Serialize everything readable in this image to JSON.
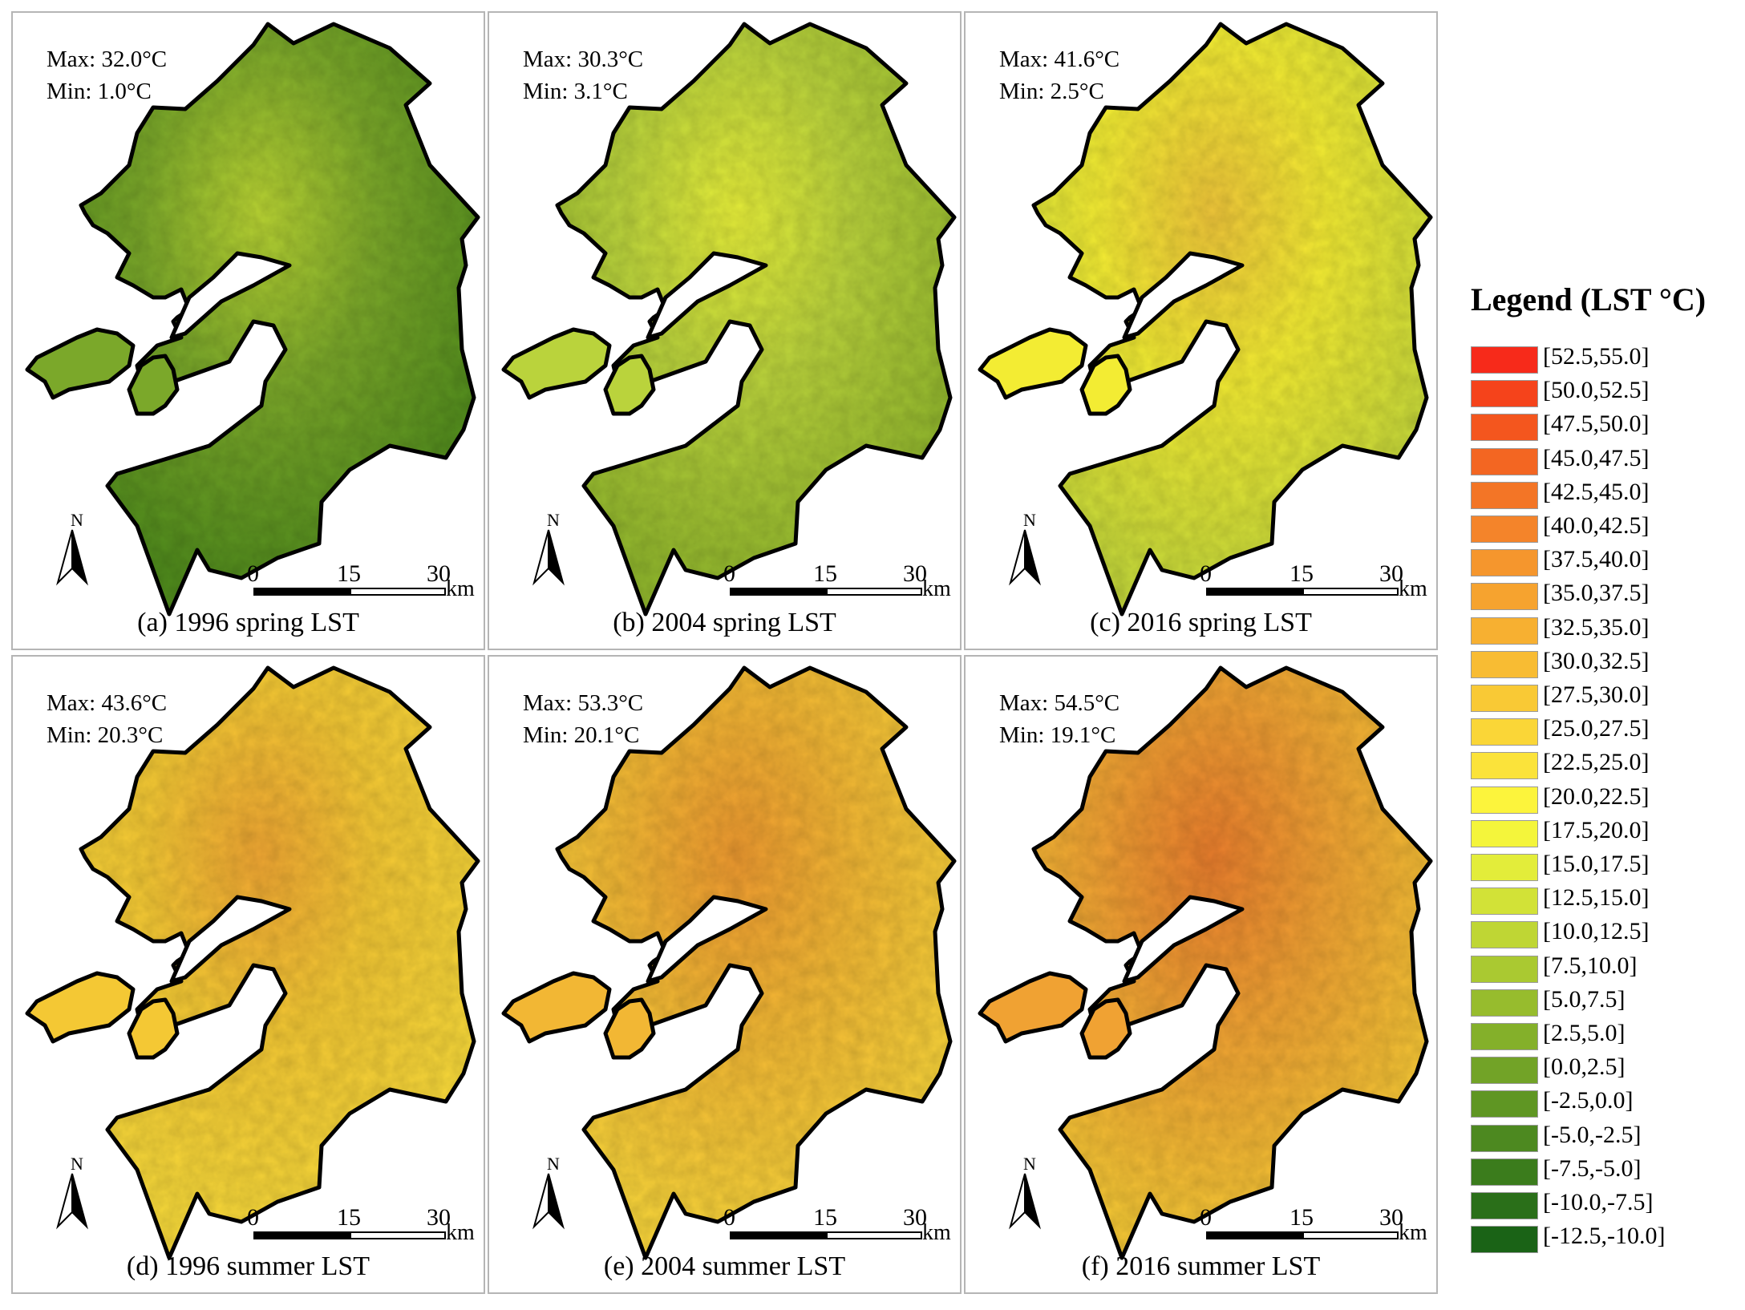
{
  "panels": [
    {
      "id": "a",
      "max": "Max: 32.0°C",
      "min": "Min: 1.0°C",
      "caption": "(a) 1996 spring LST",
      "base": "#7ba82a",
      "accent": "#b9d433",
      "dark": "#4f8a1c"
    },
    {
      "id": "b",
      "max": "Max: 30.3°C",
      "min": "Min: 3.1°C",
      "caption": "(b) 2004 spring LST",
      "base": "#bad33c",
      "accent": "#e7ef3a",
      "dark": "#8fb52c"
    },
    {
      "id": "c",
      "max": "Max: 41.6°C",
      "min": "Min: 2.5°C",
      "caption": "(c) 2016 spring LST",
      "base": "#f3ec33",
      "accent": "#f0c73a",
      "dark": "#c5d83a"
    },
    {
      "id": "d",
      "max": "Max: 43.6°C",
      "min": "Min: 20.3°C",
      "caption": "(d) 1996 summer LST",
      "base": "#f4c834",
      "accent": "#f0a733",
      "dark": "#f7d93a"
    },
    {
      "id": "e",
      "max": "Max: 53.3°C",
      "min": "Min: 20.1°C",
      "caption": "(e) 2004 summer LST",
      "base": "#f2b734",
      "accent": "#ee9a30",
      "dark": "#f7d33a"
    },
    {
      "id": "f",
      "max": "Max: 54.5°C",
      "min": "Min: 19.1°C",
      "caption": "(f) 2016 summer LST",
      "base": "#f0a233",
      "accent": "#ea7e2d",
      "dark": "#f5c735"
    }
  ],
  "scalebar": {
    "tick0": "0",
    "tick1": "15",
    "tick2": "30",
    "unit": "km"
  },
  "north_label": "N",
  "legend": {
    "title": "Legend (LST °C)",
    "items": [
      {
        "label": "[52.5,55.0]",
        "color": "#f72a1a"
      },
      {
        "label": "[50.0,52.5]",
        "color": "#f5431b"
      },
      {
        "label": "[47.5,50.0]",
        "color": "#f4561e"
      },
      {
        "label": "[45.0,47.5]",
        "color": "#f36622"
      },
      {
        "label": "[42.5,45.0]",
        "color": "#f37526"
      },
      {
        "label": "[40.0,42.5]",
        "color": "#f4842a"
      },
      {
        "label": "[37.5,40.0]",
        "color": "#f5962d"
      },
      {
        "label": "[35.0,37.5]",
        "color": "#f6a32f"
      },
      {
        "label": "[32.5,35.0]",
        "color": "#f7b031"
      },
      {
        "label": "[30.0,32.5]",
        "color": "#f8bc33"
      },
      {
        "label": "[27.5,30.0]",
        "color": "#f9c935"
      },
      {
        "label": "[25.0,27.5]",
        "color": "#fad637"
      },
      {
        "label": "[22.5,25.0]",
        "color": "#fbe33a"
      },
      {
        "label": "[20.0,22.5]",
        "color": "#fcf43c"
      },
      {
        "label": "[17.5,20.0]",
        "color": "#f4f53b"
      },
      {
        "label": "[15.0,17.5]",
        "color": "#e3ed3a"
      },
      {
        "label": "[12.5,15.0]",
        "color": "#d2e237"
      },
      {
        "label": "[10.0,12.5]",
        "color": "#bfd634"
      },
      {
        "label": "[7.5,10.0]",
        "color": "#aac931"
      },
      {
        "label": "[5.0,7.5]",
        "color": "#97bc2d"
      },
      {
        "label": "[2.5,5.0]",
        "color": "#84b02a"
      },
      {
        "label": "[0.0,2.5]",
        "color": "#72a327"
      },
      {
        "label": "[-2.5,0.0]",
        "color": "#5f9623"
      },
      {
        "label": "[-5.0,-2.5]",
        "color": "#4d8920"
      },
      {
        "label": "[-7.5,-5.0]",
        "color": "#3b7c1c"
      },
      {
        "label": "[-10.0,-7.5]",
        "color": "#2a6f19"
      },
      {
        "label": "[-12.5,-10.0]",
        "color": "#1a6316"
      }
    ]
  }
}
